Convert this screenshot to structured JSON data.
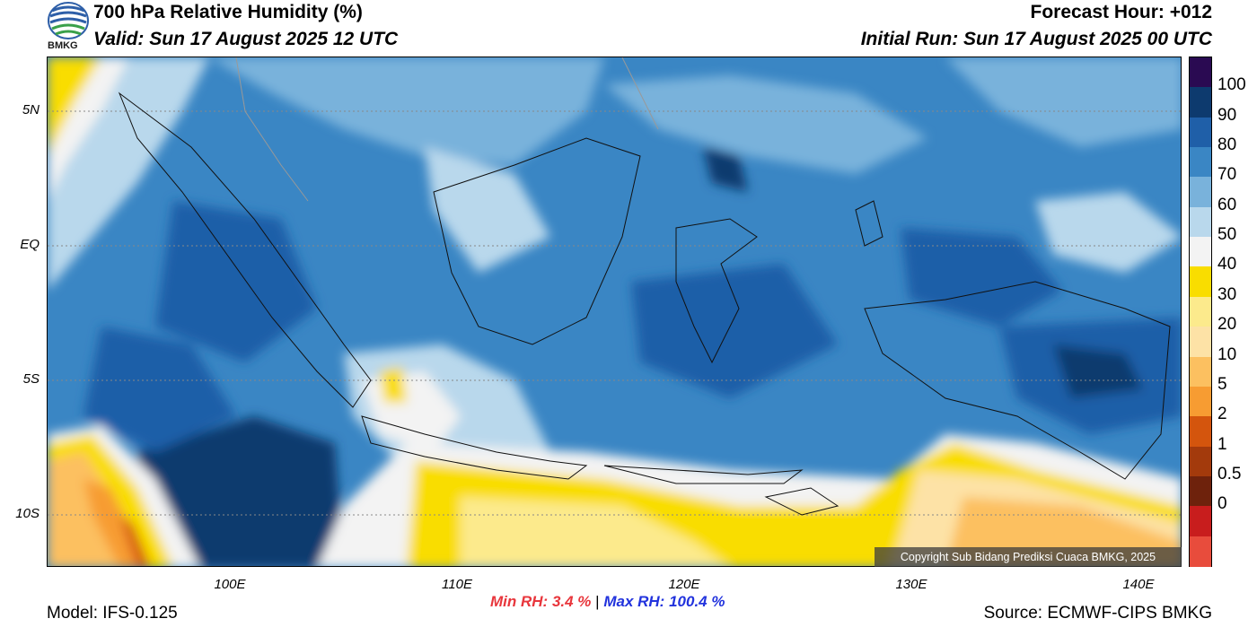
{
  "header": {
    "title": "700 hPa Relative Humidity (%)",
    "valid": "Valid: Sun 17 August 2025 12 UTC",
    "forecast_hour": "Forecast Hour: +012",
    "initial_run": "Initial Run: Sun 17 August 2025 00 UTC",
    "logo_text": "BMKG"
  },
  "axes": {
    "lat_ticks": [
      "5N",
      "EQ",
      "5S",
      "10S"
    ],
    "lon_ticks": [
      "100E",
      "110E",
      "120E",
      "130E",
      "140E"
    ]
  },
  "colorbar": {
    "labels": [
      "100",
      "90",
      "80",
      "70",
      "60",
      "50",
      "40",
      "30",
      "20",
      "10",
      "5",
      "2",
      "1",
      "0.5",
      "0"
    ],
    "colors": [
      "#2a0a52",
      "#0d3a6e",
      "#1f5fa8",
      "#3a86c4",
      "#79b2db",
      "#b9d8ec",
      "#f3f3f3",
      "#f9dd00",
      "#fcea8c",
      "#fde2a6",
      "#fcc060",
      "#f79c32",
      "#d4550d",
      "#a33a0c",
      "#6e220c",
      "#c81d1d",
      "#e84c3c"
    ]
  },
  "copyright": "Copyright Sub Bidang Prediksi Cuaca BMKG, 2025",
  "stats": {
    "min_label": "Min RH:",
    "min_value": "3.4 %",
    "separator": "|",
    "max_label": "Max RH:",
    "max_value": "100.4 %"
  },
  "footer": {
    "model": "Model: IFS-0.125",
    "source": "Source: ECMWF-CIPS BMKG"
  }
}
